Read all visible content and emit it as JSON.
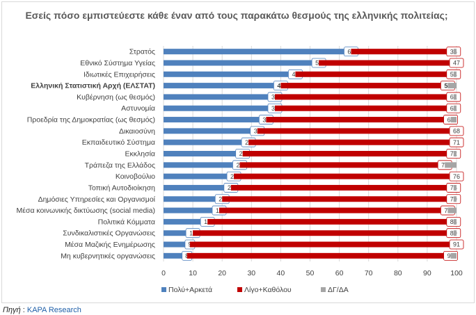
{
  "chart_data": {
    "type": "bar",
    "orientation": "horizontal",
    "stacked": true,
    "title": "Εσείς πόσο εμπιστεύεστε κάθε έναν από τους παρακάτω θεσμούς της ελληνικής πολιτείας;",
    "categories": [
      "Στρατός",
      "Εθνικό Σύστημα Υγείας",
      "Ιδιωτικές Επιχειρήσεις",
      "Ελληνική Στατιστική Αρχή (ΕΛΣΤΑΤ)",
      "Κυβέρνηση (ως θεσμός)",
      "Αστυνομία",
      "Προεδρία της Δημοκρατίας (ως θεσμός)",
      "Δικαιοσύνη",
      "Εκπαιδευτικό Σύστημα",
      "Εκκλησία",
      "Τράπεζα της Ελλάδος",
      "Κοινοβούλιο",
      "Τοπική Αυτοδιοίκηση",
      "Δημόσιες Υπηρεσίες και Οργανισμοί",
      "Μέσα κοινωνικής δικτύωσης (social media)",
      "Πολιτικά Κόμματα",
      "Συνδικαλιστικές Οργανώσεις",
      "Μέσα Μαζικής Ενημέρωσης",
      "Μη κυβερνητικές οργανώσεις"
    ],
    "series": [
      {
        "name": "Πολύ+Αρκετά",
        "color": "#4f81bd",
        "values": [
          64,
          53,
          45,
          40,
          38,
          38,
          35,
          32,
          29,
          27,
          26,
          24,
          23,
          20,
          19,
          15,
          10,
          9,
          8
        ]
      },
      {
        "name": "Λίγο+Καθόλου",
        "color": "#c00000",
        "values": [
          35,
          47,
          54,
          57,
          61,
          61,
          63,
          68,
          71,
          72,
          70,
          76,
          76,
          79,
          78,
          84,
          89,
          91,
          90
        ]
      },
      {
        "name": "ΔΓ/ΔΑ",
        "color": "#a5a5a5",
        "values": [
          1,
          0,
          1,
          3,
          1,
          1,
          2,
          0,
          0,
          1,
          4,
          0,
          1,
          1,
          3,
          1,
          1,
          0,
          2
        ]
      }
    ],
    "bold_category_index": 3,
    "xlim": [
      0,
      100
    ],
    "xticks": [
      0,
      10,
      20,
      30,
      40,
      50,
      60,
      70,
      80,
      90,
      100
    ],
    "grid": true,
    "legend_position": "bottom"
  },
  "source": {
    "label": "Πηγή",
    "separator": " : ",
    "name": "KAPA Research"
  }
}
